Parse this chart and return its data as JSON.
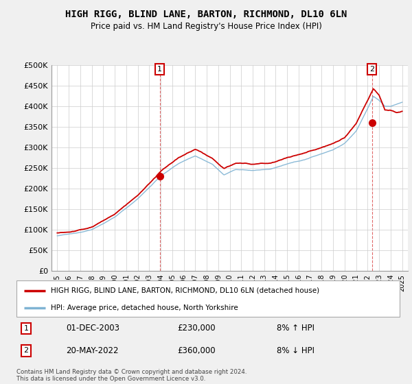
{
  "title": "HIGH RIGG, BLIND LANE, BARTON, RICHMOND, DL10 6LN",
  "subtitle": "Price paid vs. HM Land Registry's House Price Index (HPI)",
  "ylim": [
    0,
    500000
  ],
  "yticks": [
    0,
    50000,
    100000,
    150000,
    200000,
    250000,
    300000,
    350000,
    400000,
    450000,
    500000
  ],
  "ytick_labels": [
    "£0",
    "£50K",
    "£100K",
    "£150K",
    "£200K",
    "£250K",
    "£300K",
    "£350K",
    "£400K",
    "£450K",
    "£500K"
  ],
  "hpi_color": "#7fb3d3",
  "price_color": "#cc0000",
  "annotation1_date": "01-DEC-2003",
  "annotation1_price": 230000,
  "annotation1_pct": "8% ↑ HPI",
  "annotation2_date": "20-MAY-2022",
  "annotation2_price": 360000,
  "annotation2_pct": "8% ↓ HPI",
  "legend_line1": "HIGH RIGG, BLIND LANE, BARTON, RICHMOND, DL10 6LN (detached house)",
  "legend_line2": "HPI: Average price, detached house, North Yorkshire",
  "footer": "Contains HM Land Registry data © Crown copyright and database right 2024.\nThis data is licensed under the Open Government Licence v3.0.",
  "bg_color": "#f0f0f0",
  "plot_bg_color": "#ffffff"
}
